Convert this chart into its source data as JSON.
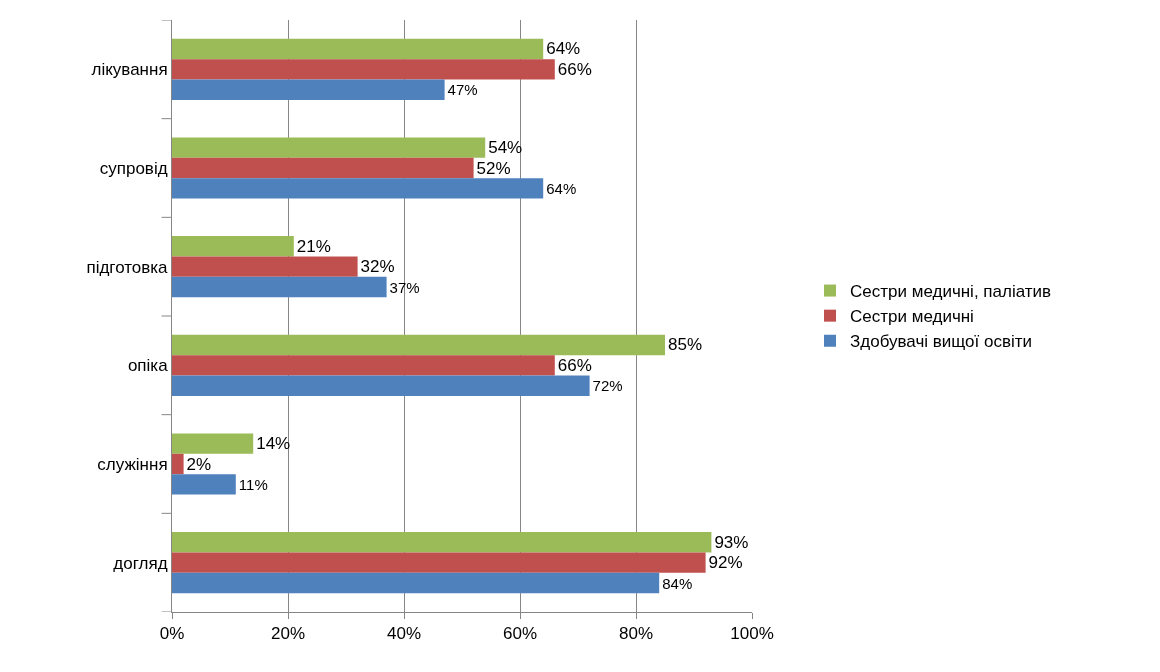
{
  "chart_data": {
    "type": "bar",
    "orientation": "horizontal",
    "categories": [
      "лікування",
      "супровід",
      "підготовка",
      "опіка",
      "служіння",
      "догляд"
    ],
    "series": [
      {
        "name": "Сестри медичні, паліатив",
        "color": "#9bbb59",
        "values": [
          64,
          54,
          21,
          85,
          14,
          93
        ],
        "value_labels": [
          "64%",
          "54%",
          "21%",
          "85%",
          "14%",
          "93%"
        ]
      },
      {
        "name": "Сестри медичні",
        "color": "#c0504d",
        "values": [
          66,
          52,
          32,
          66,
          2,
          92
        ],
        "value_labels": [
          "66%",
          "52%",
          "32%",
          "66%",
          "2%",
          "92%"
        ]
      },
      {
        "name": "Здобувачі вищої освіти",
        "color": "#4f81bd",
        "values": [
          47,
          64,
          37,
          72,
          11,
          84
        ],
        "value_labels": [
          "47%",
          "64%",
          "37%",
          "72%",
          "11%",
          "84%"
        ]
      }
    ],
    "xlim": [
      0,
      100
    ],
    "xticks": [
      {
        "value": 0,
        "label": "0%"
      },
      {
        "value": 20,
        "label": "20%"
      },
      {
        "value": 40,
        "label": "40%"
      },
      {
        "value": 60,
        "label": "60%"
      },
      {
        "value": 80,
        "label": "80%"
      },
      {
        "value": 100,
        "label": "100%"
      }
    ],
    "grid": "x",
    "legend": "right"
  }
}
